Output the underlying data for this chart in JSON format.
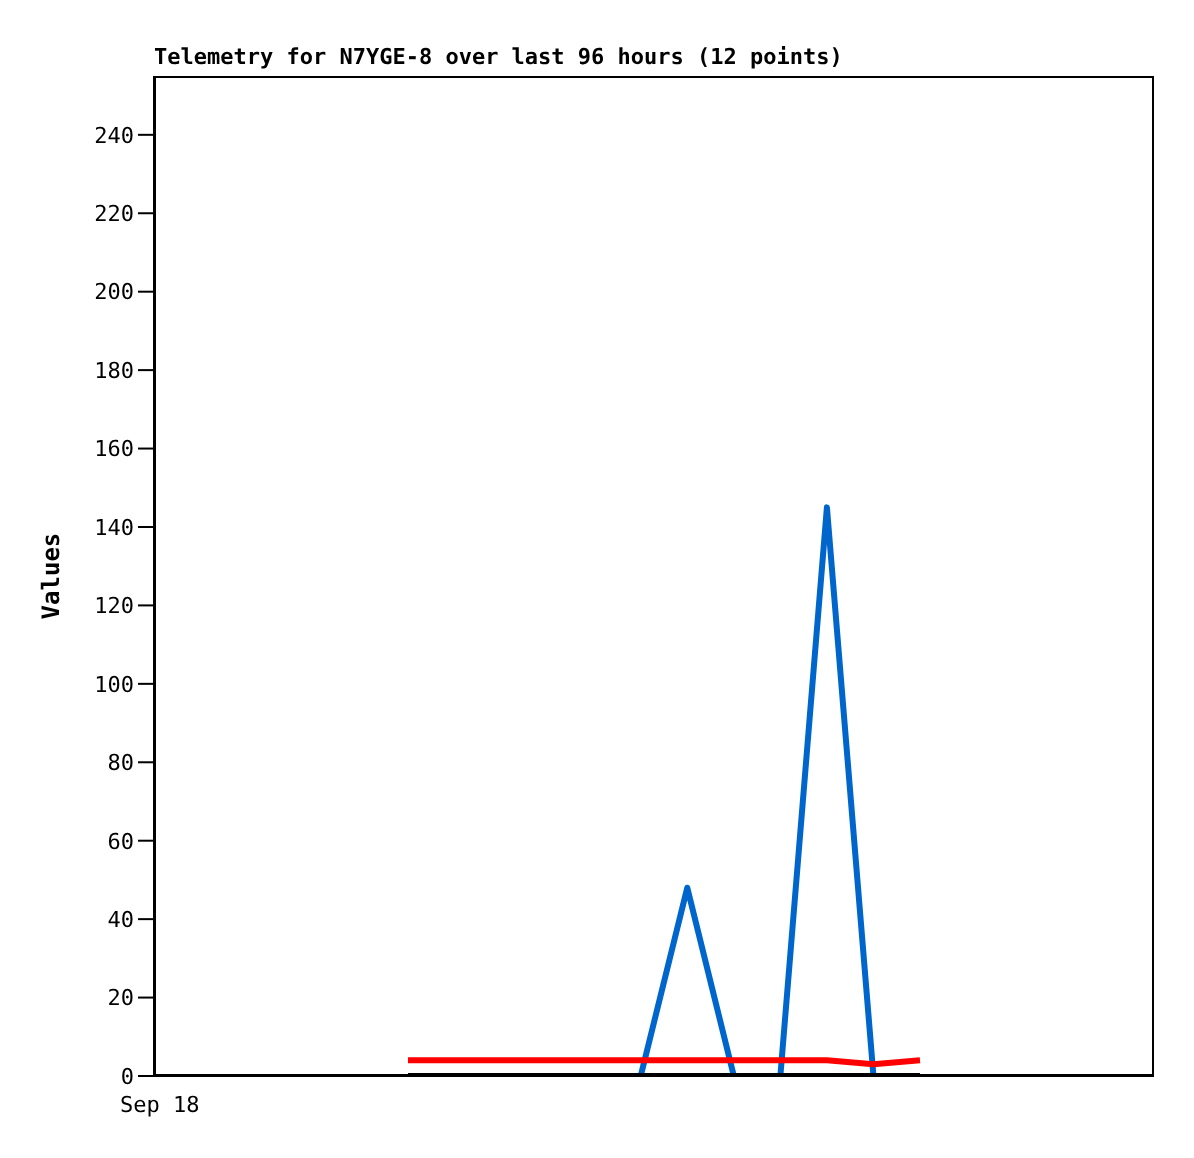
{
  "chart_data": {
    "type": "line",
    "title": "Telemetry for N7YGE-8 over last 96 hours (12 points)",
    "ylabel": "Values",
    "categories": [
      null,
      null,
      null,
      null,
      null,
      null,
      null,
      null,
      null,
      null,
      null,
      null
    ],
    "series": [
      {
        "color": "#0066cc",
        "values": [
          null,
          null,
          null,
          null,
          null,
          0,
          48,
          0,
          0,
          145,
          0,
          null
        ]
      },
      {
        "color": "#ff0000",
        "values": [
          4,
          4,
          4,
          4,
          4,
          4,
          4,
          4,
          4,
          4,
          3,
          4
        ]
      },
      {
        "color": "#000000",
        "values": [
          0,
          0,
          0,
          0,
          0,
          0,
          0,
          0,
          0,
          0,
          0,
          0
        ]
      }
    ],
    "annotations": [
      "Sep 18"
    ],
    "ylim": [
      0,
      255
    ],
    "yticks": [
      0,
      20,
      40,
      60,
      80,
      100,
      120,
      140,
      160,
      180,
      200,
      220,
      240
    ],
    "grid": false,
    "legend": false,
    "marker": "none",
    "line_style": "solid"
  }
}
